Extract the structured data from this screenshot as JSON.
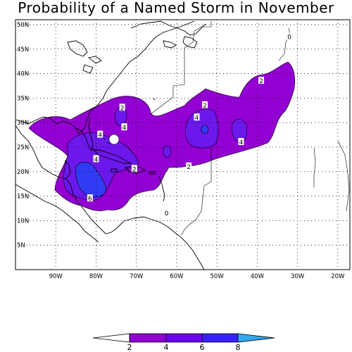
{
  "title": "Probability of a Named Storm in November",
  "map": {
    "lat_ticks": [
      "50N",
      "45N",
      "40N",
      "35N",
      "30N",
      "25N",
      "20N",
      "15N",
      "10N",
      "5N"
    ],
    "lon_ticks": [
      "90W",
      "80W",
      "70W",
      "60W",
      "50W",
      "40W",
      "30W",
      "20W"
    ],
    "lon_range": [
      -100,
      -17
    ],
    "lat_range": [
      0,
      51
    ],
    "grid": "dotted"
  },
  "contour_labels": [
    {
      "text": "2",
      "lon": -73.5,
      "lat": 33.0
    },
    {
      "text": "2",
      "lon": -53.0,
      "lat": 33.5
    },
    {
      "text": "2",
      "lon": -39.0,
      "lat": 38.5
    },
    {
      "text": "2",
      "lon": -70.5,
      "lat": 20.5
    },
    {
      "text": "2",
      "lon": -57.0,
      "lat": 21.0
    },
    {
      "text": "4",
      "lon": -73.0,
      "lat": 29.0
    },
    {
      "text": "4",
      "lon": -79.0,
      "lat": 27.5
    },
    {
      "text": "4",
      "lon": -80.0,
      "lat": 22.5
    },
    {
      "text": "4",
      "lon": -55.0,
      "lat": 31.0
    },
    {
      "text": "4",
      "lon": -44.0,
      "lat": 26.0
    },
    {
      "text": "6",
      "lon": -81.5,
      "lat": 14.5
    },
    {
      "text": "0",
      "lon": -32.0,
      "lat": 47.5
    },
    {
      "text": "0",
      "lon": -62.5,
      "lat": 11.5
    }
  ],
  "colorbar": {
    "labels": [
      "2",
      "4",
      "6",
      "8"
    ],
    "colors": [
      "#9300d3",
      "#6d00ee",
      "#3a20ff",
      "#33a8ee"
    ]
  },
  "colors": {
    "level_2": "#9300d3",
    "level_4": "#6c18ec",
    "level_6": "#2f3cf3",
    "coast": "#000000"
  }
}
